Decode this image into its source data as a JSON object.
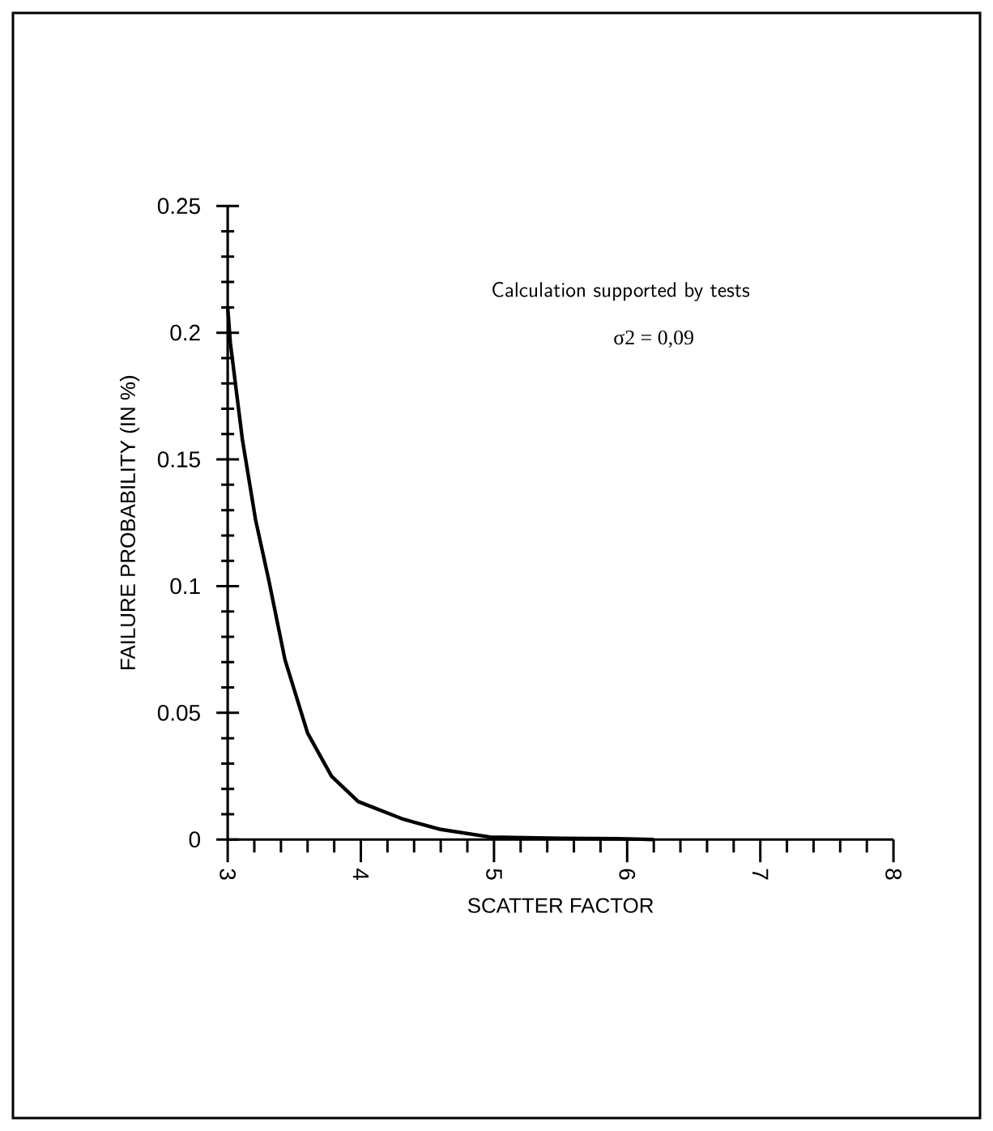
{
  "chart_data": {
    "type": "line",
    "xlabel": "SCATTER FACTOR",
    "ylabel": "FAILURE PROBABILITY   (IN %)",
    "annotations": [
      "Calculation supported by tests",
      "σ2 = 0,09"
    ],
    "x": [
      3,
      3.02,
      3.11,
      3.21,
      3.31,
      3.43,
      3.6,
      3.78,
      3.98,
      4.32,
      4.6,
      4.97,
      5.5,
      6,
      6.2
    ],
    "series": [
      {
        "color": "#000000",
        "values": [
          0.21,
          0.196,
          0.158,
          0.126,
          0.102,
          0.071,
          0.042,
          0.025,
          0.015,
          0.008,
          0.004,
          0.001,
          0.0005,
          0.0003,
          0
        ]
      }
    ],
    "xlim": [
      3,
      8
    ],
    "ylim": [
      0,
      0.25
    ],
    "xticks": [
      3,
      4,
      5,
      6,
      7,
      8
    ],
    "yticks": [
      0,
      0.05,
      0.1,
      0.15,
      0.2,
      0.25
    ]
  }
}
